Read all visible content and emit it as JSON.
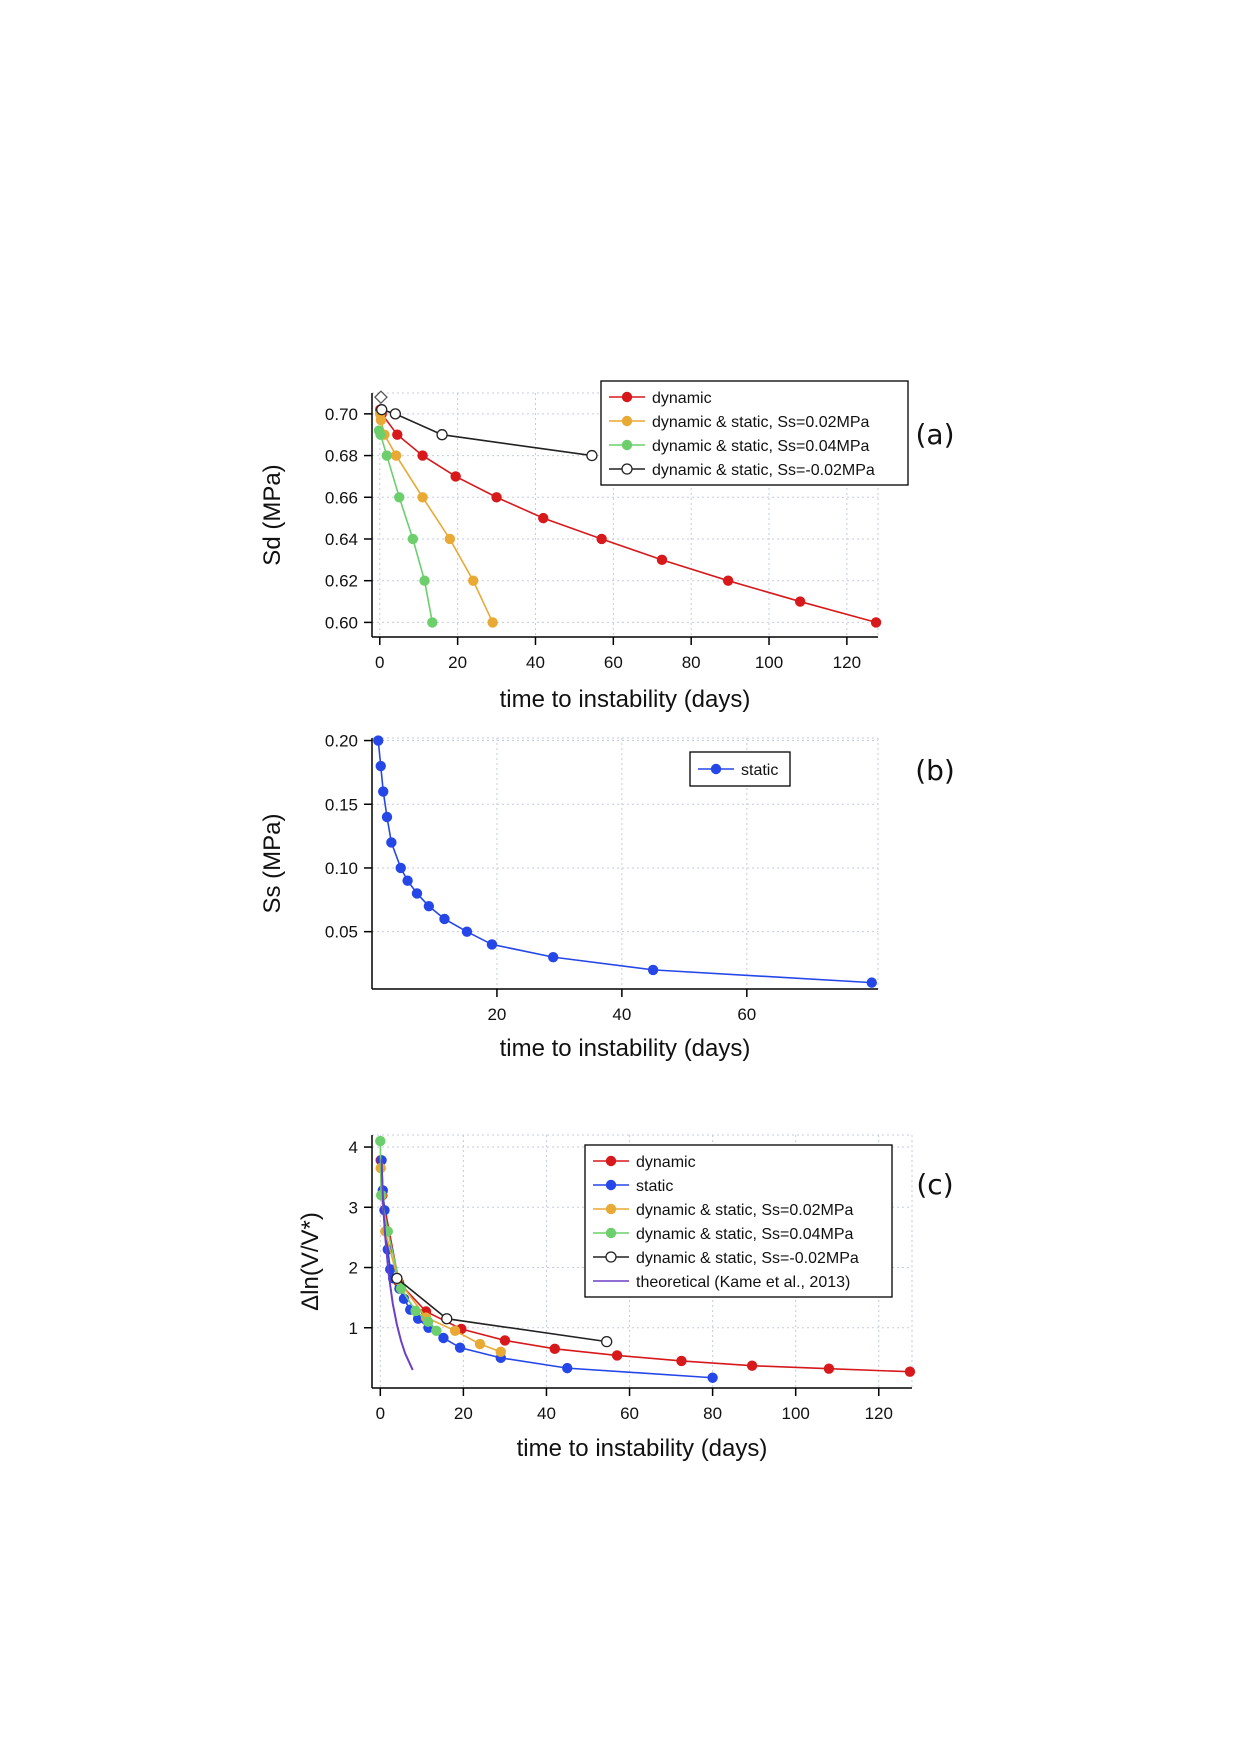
{
  "chart_data": [
    {
      "type": "line",
      "panel_label": "(a)",
      "xlabel": "time to instability (days)",
      "ylabel": "Sd (MPa)",
      "xlim": [
        -2,
        128
      ],
      "ylim": [
        0.593,
        0.71
      ],
      "xticks": [
        0,
        20,
        40,
        60,
        80,
        100,
        120
      ],
      "yticks": [
        0.6,
        0.62,
        0.64,
        0.66,
        0.68,
        0.7
      ],
      "ytick_labels": [
        "0.60",
        "0.62",
        "0.64",
        "0.66",
        "0.68",
        "0.70"
      ],
      "grid": true,
      "legend_position": "top-right",
      "extra_marker": {
        "x": 0.3,
        "y": 0.708,
        "marker": "diamond-open",
        "color": "#555555"
      },
      "series": [
        {
          "name": "dynamic",
          "color": "#d7191c",
          "marker": "filled",
          "x": [
            0.1,
            0.5,
            4.5,
            11,
            19.5,
            30,
            42,
            57,
            72.5,
            89.5,
            108,
            127.5
          ],
          "y": [
            0.702,
            0.7,
            0.69,
            0.68,
            0.67,
            0.66,
            0.65,
            0.64,
            0.63,
            0.62,
            0.61,
            0.6
          ]
        },
        {
          "name": "dynamic & static, Ss=0.02MPa",
          "color": "#e8a935",
          "marker": "filled",
          "x": [
            0.1,
            0.3,
            1.2,
            4.2,
            11,
            18,
            24,
            29
          ],
          "y": [
            0.7,
            0.697,
            0.69,
            0.68,
            0.66,
            0.64,
            0.62,
            0.6
          ]
        },
        {
          "name": "dynamic & static, Ss=0.04MPa",
          "color": "#6ccf6c",
          "marker": "filled",
          "x": [
            -0.2,
            0.2,
            1.8,
            5,
            8.5,
            11.5,
            13.5
          ],
          "y": [
            0.692,
            0.69,
            0.68,
            0.66,
            0.64,
            0.62,
            0.6
          ]
        },
        {
          "name": "dynamic & static, Ss=-0.02MPa",
          "color": "#222222",
          "marker": "open",
          "x": [
            0.5,
            4,
            16,
            54.5
          ],
          "y": [
            0.702,
            0.7,
            0.69,
            0.68
          ]
        }
      ]
    },
    {
      "type": "line",
      "panel_label": "(b)",
      "xlabel": "time to instability (days)",
      "ylabel": "Ss (MPa)",
      "xlim": [
        0,
        81
      ],
      "ylim": [
        0.005,
        0.202
      ],
      "xticks": [
        20,
        40,
        60
      ],
      "yticks": [
        0.05,
        0.1,
        0.15,
        0.2
      ],
      "ytick_labels": [
        "0.05",
        "0.10",
        "0.15",
        "0.20"
      ],
      "grid": true,
      "legend_position": "top-right",
      "series": [
        {
          "name": "static",
          "color": "#2647e8",
          "marker": "filled",
          "x": [
            1.0,
            1.4,
            1.8,
            2.4,
            3.1,
            4.6,
            5.7,
            7.2,
            9.1,
            11.6,
            15.2,
            19.2,
            29,
            45,
            80
          ],
          "y": [
            0.2,
            0.18,
            0.16,
            0.14,
            0.12,
            0.1,
            0.09,
            0.08,
            0.07,
            0.06,
            0.05,
            0.04,
            0.03,
            0.02,
            0.01
          ]
        }
      ]
    },
    {
      "type": "line",
      "panel_label": "(c)",
      "xlabel": "time to instability (days)",
      "ylabel": "Δln(V/V*)",
      "xlim": [
        -2,
        128
      ],
      "ylim": [
        0.0,
        4.2
      ],
      "xticks": [
        0,
        20,
        40,
        60,
        80,
        100,
        120
      ],
      "yticks": [
        1,
        2,
        3,
        4
      ],
      "ytick_labels": [
        "1",
        "2",
        "3",
        "4"
      ],
      "grid": true,
      "legend_position": "top-right",
      "series": [
        {
          "name": "dynamic",
          "color": "#d7191c",
          "marker": "filled",
          "x": [
            0.1,
            0.5,
            4.5,
            11,
            19.5,
            30,
            42,
            57,
            72.5,
            89.5,
            108,
            127.5
          ],
          "y": [
            3.78,
            3.2,
            1.75,
            1.27,
            0.98,
            0.79,
            0.65,
            0.54,
            0.45,
            0.37,
            0.32,
            0.27
          ]
        },
        {
          "name": "static",
          "color": "#2647e8",
          "marker": "filled",
          "x": [
            0.3,
            0.6,
            1.0,
            1.4,
            1.8,
            2.4,
            3.1,
            4.6,
            5.7,
            7.2,
            9.1,
            11.6,
            15.2,
            19.2,
            29,
            45,
            80
          ],
          "y": [
            3.78,
            3.28,
            2.95,
            2.6,
            2.3,
            1.97,
            1.82,
            1.65,
            1.48,
            1.3,
            1.15,
            1.0,
            0.83,
            0.67,
            0.5,
            0.33,
            0.17
          ]
        },
        {
          "name": "dynamic & static, Ss=0.02MPa",
          "color": "#e8a935",
          "marker": "filled",
          "x": [
            0.1,
            0.3,
            1.2,
            4.2,
            11,
            18,
            24,
            29
          ],
          "y": [
            3.65,
            3.2,
            2.6,
            1.8,
            1.17,
            0.95,
            0.73,
            0.6
          ]
        },
        {
          "name": "dynamic & static, Ss=0.04MPa",
          "color": "#6ccf6c",
          "marker": "filled",
          "x": [
            0.0,
            0.2,
            1.8,
            5,
            8.5,
            11.5,
            13.5
          ],
          "y": [
            4.1,
            3.2,
            2.6,
            1.65,
            1.28,
            1.1,
            0.95
          ]
        },
        {
          "name": "dynamic & static, Ss=-0.02MPa",
          "color": "#222222",
          "marker": "open",
          "x": [
            4,
            16,
            54.5
          ],
          "y": [
            1.82,
            1.15,
            0.77
          ]
        },
        {
          "name": "theoretical (Kame et al., 2013)",
          "color": "#6b3fc6",
          "marker": "none",
          "x": [
            0.3,
            0.7,
            1.2,
            2,
            3,
            4,
            5,
            6,
            7,
            7.8
          ],
          "y": [
            3.8,
            3.0,
            2.5,
            1.9,
            1.4,
            1.05,
            0.78,
            0.57,
            0.42,
            0.3
          ]
        }
      ]
    }
  ]
}
